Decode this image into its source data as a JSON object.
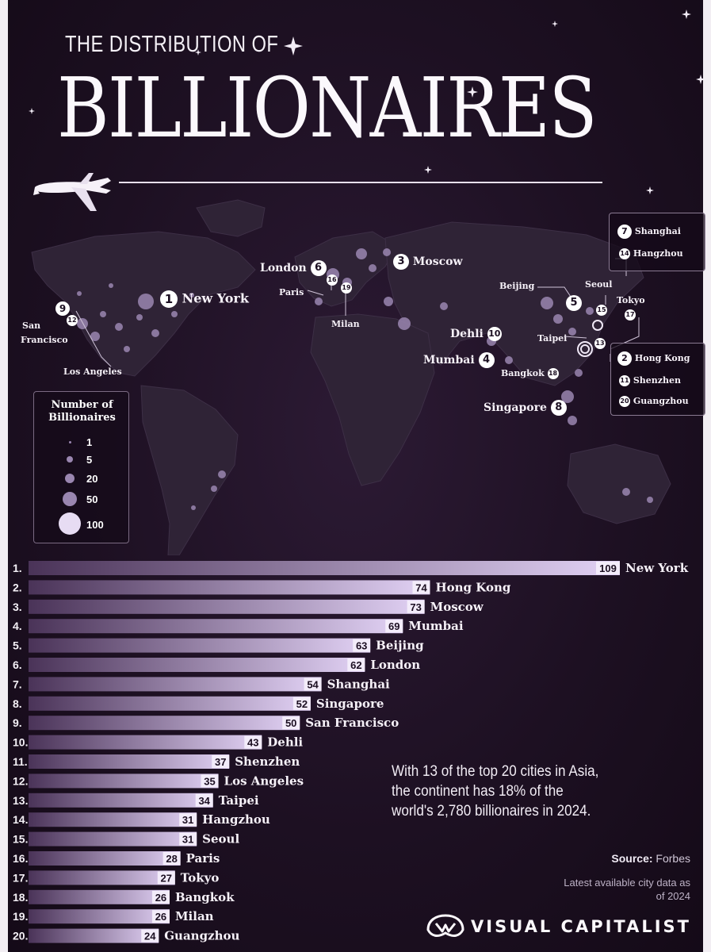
{
  "header": {
    "supertitle": "THE DISTRIBUTION OF",
    "title": "BILLIONAIRES"
  },
  "colors": {
    "background": "#1d1022",
    "bar_start": "#4a3358",
    "bar_end": "#e2d2f5",
    "land": "#2f2336",
    "bubble": "#9a86b0"
  },
  "map": {
    "labels": {
      "new_york": "New York",
      "london": "London",
      "moscow": "Moscow",
      "paris": "Paris",
      "milan": "Milan",
      "san_francisco_1": "San",
      "san_francisco_2": "Francisco",
      "los_angeles": "Los Angeles",
      "beijing": "Beijing",
      "seoul": "Seoul",
      "tokyo": "Tokyo",
      "taipei": "Taipei",
      "dehli": "Dehli",
      "mumbai": "Mumbai",
      "bangkok": "Bangkok",
      "singapore": "Singapore",
      "shanghai": "Shanghai",
      "hangzhou": "Hangzhou",
      "hong_kong": "Hong Kong",
      "shenzhen": "Shenzhen",
      "guangzhou": "Guangzhou"
    },
    "ranks": {
      "r1": "1",
      "r2": "2",
      "r3": "3",
      "r4": "4",
      "r5": "5",
      "r6": "6",
      "r7": "7",
      "r8": "8",
      "r9": "9",
      "r10": "10",
      "r11": "11",
      "r12": "12",
      "r13": "13",
      "r14": "14",
      "r15": "15",
      "r16": "16",
      "r17": "17",
      "r18": "18",
      "r19": "19",
      "r20": "20"
    }
  },
  "legend": {
    "title_line1": "Number of",
    "title_line2": "Billionaires",
    "items": [
      "1",
      "5",
      "20",
      "50",
      "100"
    ]
  },
  "chart_data": {
    "type": "bar",
    "orientation": "horizontal",
    "categories": [
      "New York",
      "Hong Kong",
      "Moscow",
      "Mumbai",
      "Beijing",
      "London",
      "Shanghai",
      "Singapore",
      "San Francisco",
      "Dehli",
      "Shenzhen",
      "Los Angeles",
      "Taipei",
      "Hangzhou",
      "Seoul",
      "Paris",
      "Tokyo",
      "Bangkok",
      "Milan",
      "Guangzhou"
    ],
    "ranks": [
      "1.",
      "2.",
      "3.",
      "4.",
      "5.",
      "6.",
      "7.",
      "8.",
      "9.",
      "10.",
      "11.",
      "12.",
      "13.",
      "14.",
      "15.",
      "16.",
      "17.",
      "18.",
      "19.",
      "20."
    ],
    "values": [
      109,
      74,
      73,
      69,
      63,
      62,
      54,
      52,
      50,
      43,
      37,
      35,
      34,
      31,
      31,
      28,
      27,
      26,
      26,
      24
    ],
    "xlim": [
      0,
      109
    ]
  },
  "annotation": "With 13 of the top 20 cities in Asia, the continent has 18% of the world's 2,780 billionaires in 2024.",
  "source": {
    "label": "Source:",
    "value": "Forbes"
  },
  "note": "Latest available city data as of 2024",
  "brand": "VISUAL CAPITALIST"
}
